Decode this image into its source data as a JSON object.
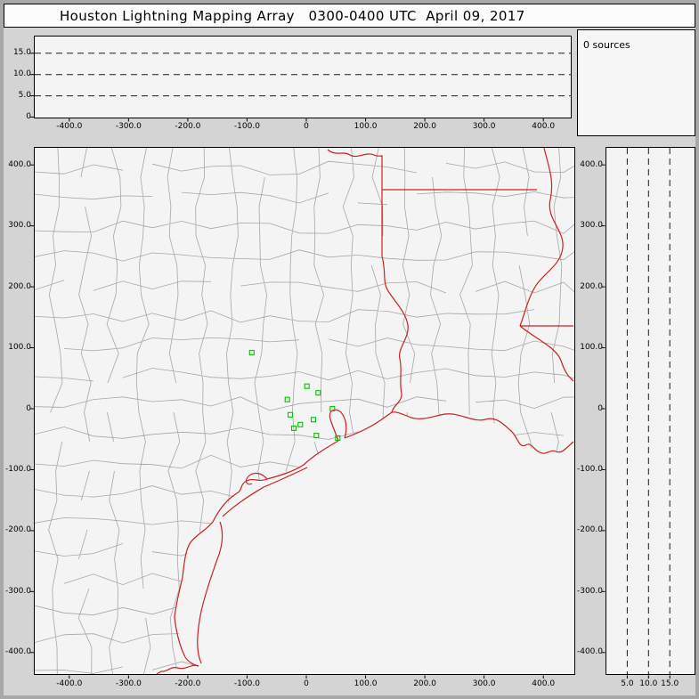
{
  "title": "Houston Lightning Mapping Array   0300-0400 UTC  April 09, 2017",
  "sources_panel": {
    "label": "0 sources",
    "count": 0
  },
  "colors": {
    "state_border": "#cc2020",
    "county_line": "#a6a6a6",
    "station": "#00c400",
    "gridline": "#1a1a1a",
    "tick": "#000000"
  },
  "chart_data": [
    {
      "id": "alt_vs_ew",
      "type": "scatter",
      "description": "altitude (km) vs east-west distance (km), no sources plotted",
      "points": [],
      "xlim": [
        -460,
        448
      ],
      "ylim": [
        0,
        19
      ],
      "x_ticks": [
        {
          "v": -400,
          "label": "-400.0"
        },
        {
          "v": -300,
          "label": "-300.0"
        },
        {
          "v": -200,
          "label": "-200.0"
        },
        {
          "v": -100,
          "label": "-100.0"
        },
        {
          "v": 0,
          "label": "0"
        },
        {
          "v": 100,
          "label": "100.0"
        },
        {
          "v": 200,
          "label": "200.0"
        },
        {
          "v": 300,
          "label": "300.0"
        },
        {
          "v": 400,
          "label": "400.0"
        }
      ],
      "y_ticks": [
        {
          "v": 15,
          "label": "15.0"
        },
        {
          "v": 10,
          "label": "10.0"
        },
        {
          "v": 5,
          "label": "5.0"
        },
        {
          "v": 0,
          "label": "0"
        }
      ],
      "gridlines_alt_km": [
        5,
        10,
        15
      ],
      "grid_style": "dashed"
    },
    {
      "id": "map",
      "type": "scatter",
      "description": "plan-view map, Texas/Louisiana region with county and state borders; green squares are LMA stations",
      "xlim": [
        -458,
        453
      ],
      "ylim": [
        -433,
        430
      ],
      "x_ticks": [
        {
          "v": -400,
          "label": "-400.0"
        },
        {
          "v": -300,
          "label": "-300.0"
        },
        {
          "v": -200,
          "label": "-200.0"
        },
        {
          "v": -100,
          "label": "-100.0"
        },
        {
          "v": 0,
          "label": "0"
        },
        {
          "v": 100,
          "label": "100.0"
        },
        {
          "v": 200,
          "label": "200.0"
        },
        {
          "v": 300,
          "label": "300.0"
        },
        {
          "v": 400,
          "label": "400.0"
        }
      ],
      "y_ticks": [
        {
          "v": 400,
          "label": "400.0"
        },
        {
          "v": 300,
          "label": "300.0"
        },
        {
          "v": 200,
          "label": "200.0"
        },
        {
          "v": 100,
          "label": "100.0"
        },
        {
          "v": 0,
          "label": "0"
        },
        {
          "v": -100,
          "label": "-100.0"
        },
        {
          "v": -200,
          "label": "-200.0"
        },
        {
          "v": -300,
          "label": "-300.0"
        },
        {
          "v": -400,
          "label": "-400.0"
        }
      ],
      "stations_km": [
        [
          -92,
          92
        ],
        [
          -32,
          15
        ],
        [
          1,
          37
        ],
        [
          20,
          26
        ],
        [
          -27,
          -10
        ],
        [
          -10,
          -26
        ],
        [
          12,
          -18
        ],
        [
          -21,
          -32
        ],
        [
          17,
          -44
        ],
        [
          44,
          0
        ],
        [
          53,
          -48
        ]
      ]
    },
    {
      "id": "alt_vs_ns",
      "type": "scatter",
      "description": "north-south distance (km) vs altitude (km), no sources plotted",
      "points": [],
      "xlim": [
        0,
        21
      ],
      "ylim": [
        -433,
        430
      ],
      "x_ticks": [
        {
          "v": 5,
          "label": "5.0"
        },
        {
          "v": 10,
          "label": "10.0"
        },
        {
          "v": 15,
          "label": "15.0"
        }
      ],
      "y_ticks": [
        {
          "v": 400,
          "label": "400.0"
        },
        {
          "v": 300,
          "label": "300.0"
        },
        {
          "v": 200,
          "label": "200.0"
        },
        {
          "v": 100,
          "label": "100.0"
        },
        {
          "v": 0,
          "label": "0"
        },
        {
          "v": -100,
          "label": "-100.0"
        },
        {
          "v": -200,
          "label": "-200.0"
        },
        {
          "v": -300,
          "label": "-300.0"
        },
        {
          "v": -400,
          "label": "-400.0"
        }
      ],
      "gridlines_alt_km": [
        5,
        10,
        15
      ],
      "grid_style": "dashed"
    }
  ]
}
